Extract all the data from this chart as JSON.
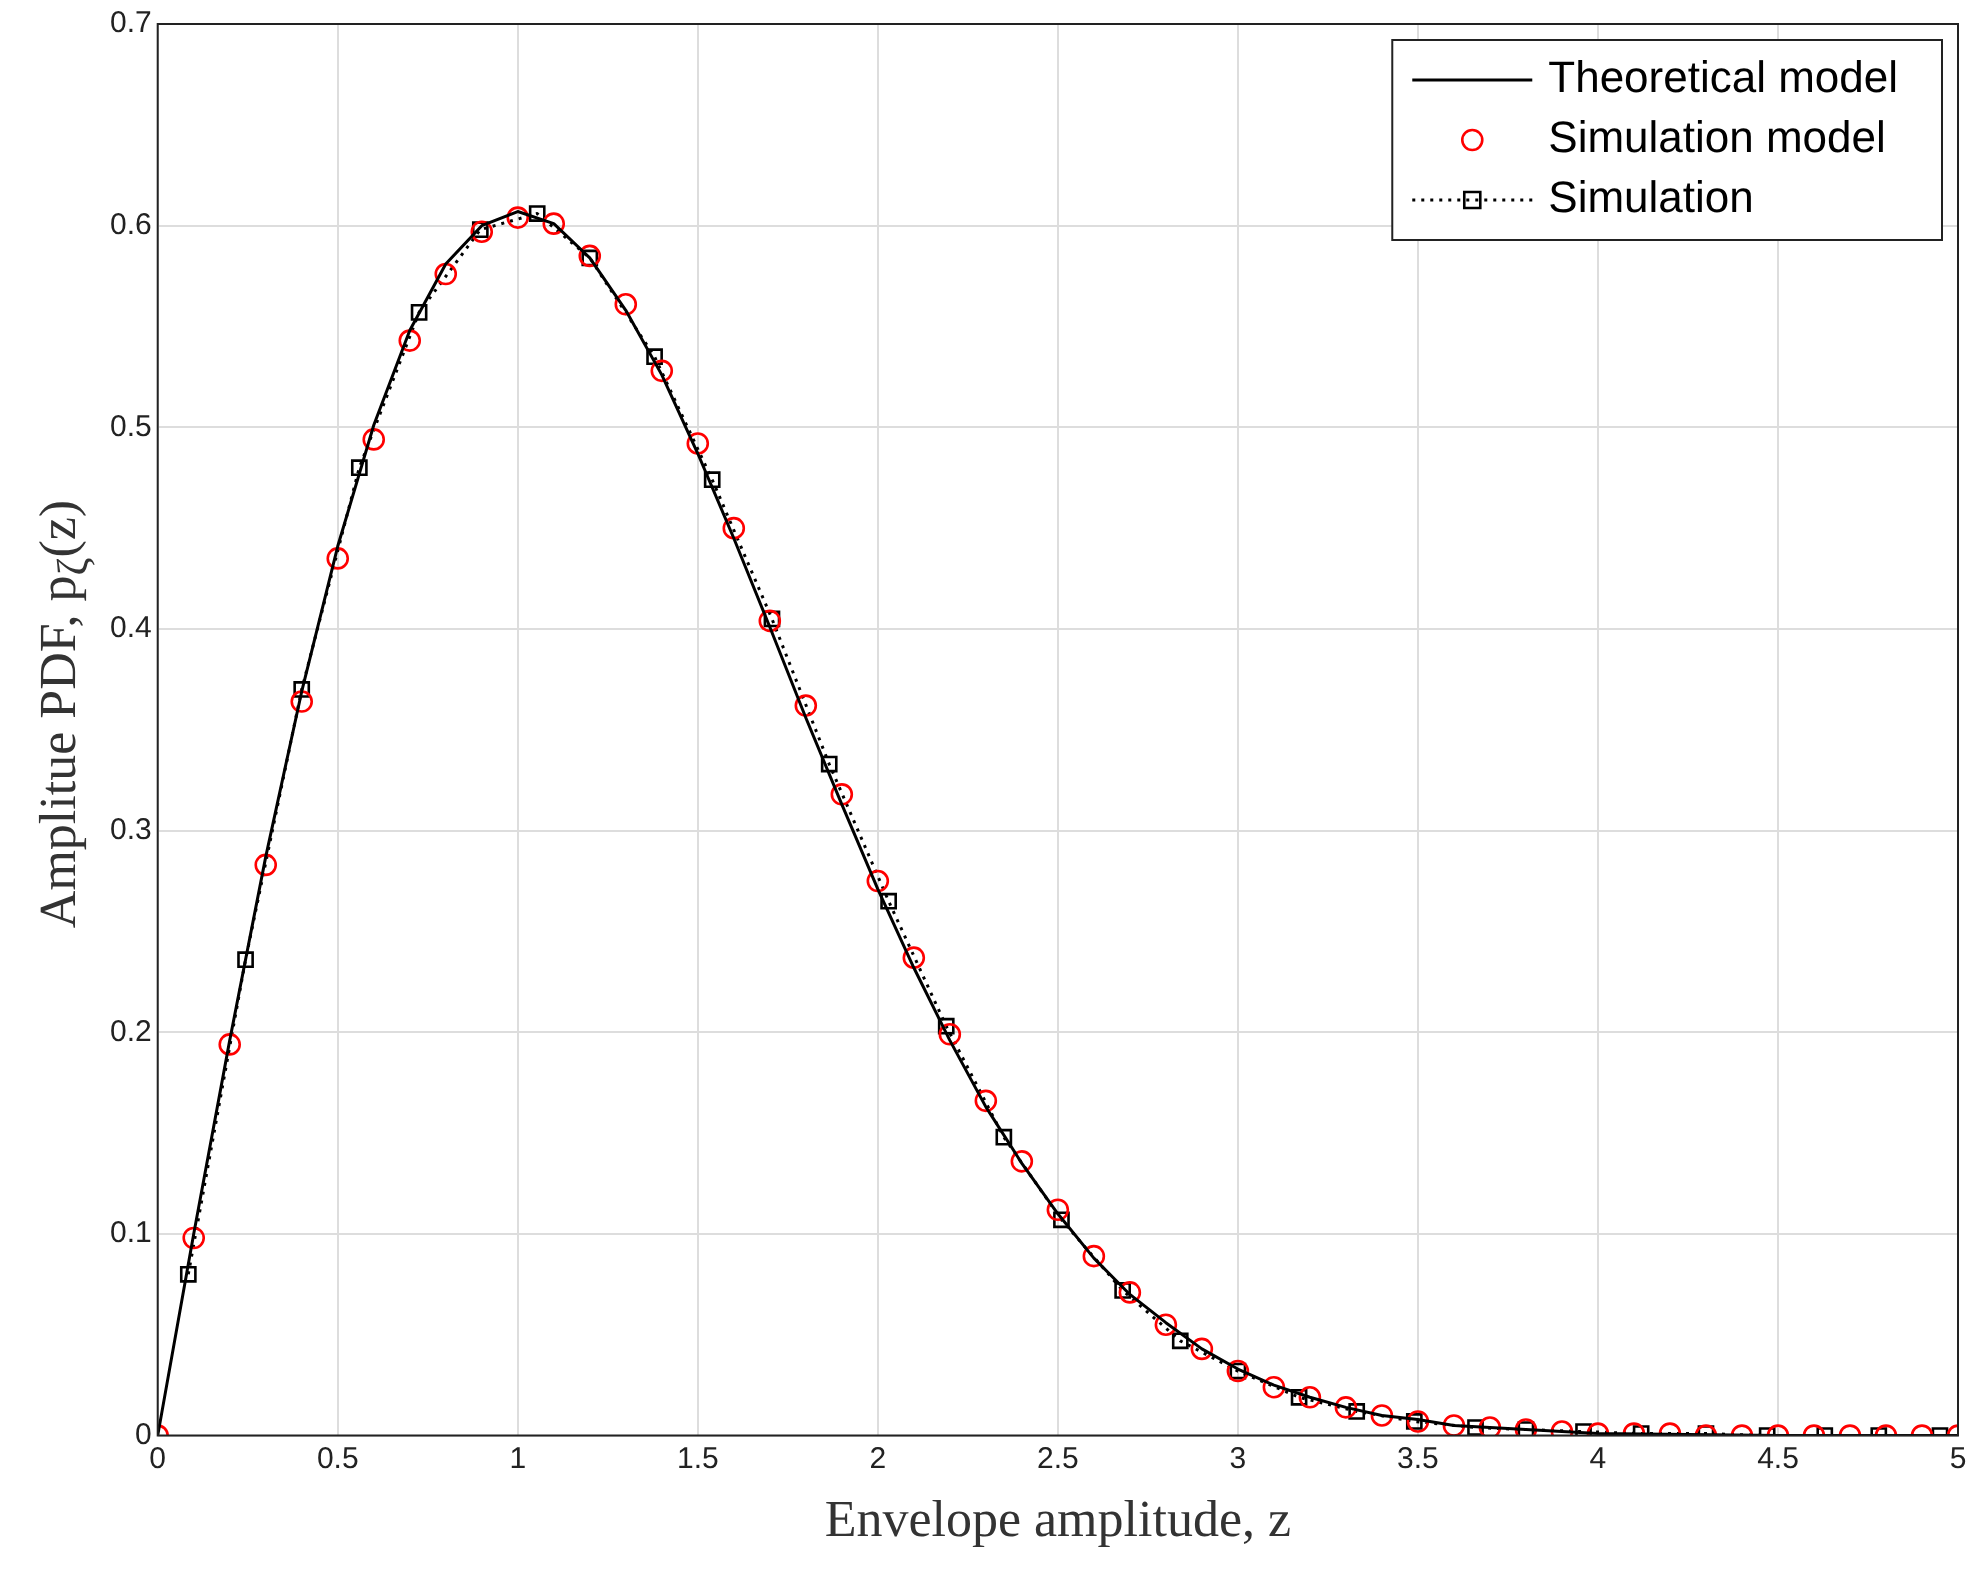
{
  "chart_data": {
    "type": "line",
    "xlabel": "Envelope amplitude, z",
    "ylabel": "Amplitue PDF, p$_{ζ}$(z)",
    "xlim": [
      0,
      5
    ],
    "xticks": [
      0,
      0.5,
      1,
      1.5,
      2,
      2.5,
      3,
      3.5,
      4,
      4.5,
      5
    ],
    "ylim": [
      0,
      0.7
    ],
    "yticks": [
      0,
      0.1,
      0.2,
      0.3,
      0.4,
      0.5,
      0.6,
      0.7
    ],
    "grid": true,
    "legend": "top right",
    "series": [
      {
        "name": "Theoretical model",
        "type": "line",
        "color": "#000000",
        "marker": "none",
        "line_style": "solid",
        "x": [
          0,
          0.1,
          0.2,
          0.3,
          0.4,
          0.5,
          0.6,
          0.7,
          0.8,
          0.9,
          1.0,
          1.1,
          1.2,
          1.3,
          1.4,
          1.5,
          1.6,
          1.7,
          1.8,
          1.9,
          2.0,
          2.1,
          2.2,
          2.3,
          2.4,
          2.5,
          2.6,
          2.7,
          2.8,
          2.9,
          3.0,
          3.1,
          3.2,
          3.3,
          3.4,
          3.5,
          3.6,
          3.7,
          3.8,
          3.9,
          4.0,
          4.5,
          5.0
        ],
        "values": [
          0,
          0.1,
          0.196,
          0.287,
          0.369,
          0.441,
          0.501,
          0.548,
          0.581,
          0.6,
          0.607,
          0.601,
          0.584,
          0.558,
          0.526,
          0.487,
          0.445,
          0.401,
          0.356,
          0.313,
          0.271,
          0.232,
          0.196,
          0.163,
          0.135,
          0.11,
          0.088,
          0.07,
          0.056,
          0.043,
          0.033,
          0.025,
          0.019,
          0.014,
          0.01,
          0.008,
          0.005,
          0.004,
          0.003,
          0.002,
          0.001,
          0,
          0
        ]
      },
      {
        "name": "Simulation model",
        "type": "scatter",
        "color": "#ff0000",
        "marker": "circle",
        "x": [
          0,
          0.1,
          0.2,
          0.3,
          0.4,
          0.5,
          0.6,
          0.7,
          0.8,
          0.9,
          1.0,
          1.1,
          1.2,
          1.3,
          1.4,
          1.5,
          1.6,
          1.7,
          1.8,
          1.9,
          2.0,
          2.1,
          2.2,
          2.3,
          2.4,
          2.5,
          2.6,
          2.7,
          2.8,
          2.9,
          3.0,
          3.1,
          3.2,
          3.3,
          3.4,
          3.5,
          3.6,
          3.7,
          3.8,
          3.9,
          4.0,
          4.1,
          4.2,
          4.3,
          4.4,
          4.5,
          4.6,
          4.7,
          4.8,
          4.9,
          5.0
        ],
        "values": [
          0,
          0.098,
          0.194,
          0.283,
          0.364,
          0.435,
          0.494,
          0.543,
          0.576,
          0.597,
          0.604,
          0.601,
          0.585,
          0.561,
          0.528,
          0.492,
          0.45,
          0.404,
          0.362,
          0.318,
          0.275,
          0.237,
          0.199,
          0.166,
          0.136,
          0.112,
          0.089,
          0.071,
          0.055,
          0.043,
          0.032,
          0.024,
          0.019,
          0.014,
          0.01,
          0.007,
          0.005,
          0.004,
          0.003,
          0.002,
          0.001,
          0.001,
          0.001,
          0,
          0,
          0,
          0,
          0,
          0,
          0,
          0
        ]
      },
      {
        "name": "Simulation",
        "type": "line",
        "color": "#000000",
        "marker": "square",
        "line_style": "dotted",
        "x": [
          0.085,
          0.244,
          0.4,
          0.56,
          0.726,
          0.896,
          1.054,
          1.2,
          1.38,
          1.54,
          1.706,
          1.865,
          2.03,
          2.19,
          2.35,
          2.51,
          2.68,
          2.84,
          3.0,
          3.17,
          3.33,
          3.49,
          3.66,
          3.8,
          3.96,
          4.12,
          4.3,
          4.47,
          4.63,
          4.78,
          4.95
        ],
        "values": [
          0.08,
          0.236,
          0.37,
          0.48,
          0.557,
          0.598,
          0.606,
          0.584,
          0.535,
          0.474,
          0.405,
          0.333,
          0.265,
          0.203,
          0.148,
          0.107,
          0.072,
          0.047,
          0.032,
          0.019,
          0.012,
          0.007,
          0.004,
          0.003,
          0.002,
          0.001,
          0.001,
          0,
          0,
          0,
          0
        ]
      }
    ]
  }
}
